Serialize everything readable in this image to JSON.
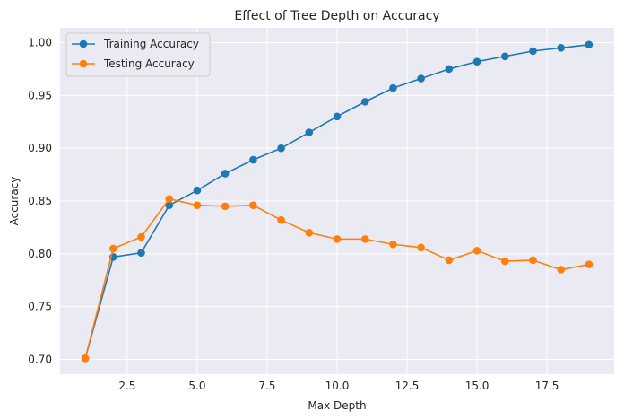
{
  "chart_data": {
    "type": "line",
    "title": "Effect of Tree Depth on Accuracy",
    "xlabel": "Max Depth",
    "ylabel": "Accuracy",
    "xlim": [
      0.1,
      19.9
    ],
    "ylim": [
      0.686,
      1.014
    ],
    "x_ticks": [
      2.5,
      5.0,
      7.5,
      10.0,
      12.5,
      15.0,
      17.5
    ],
    "x_tick_labels": [
      "2.5",
      "5.0",
      "7.5",
      "10.0",
      "12.5",
      "15.0",
      "17.5"
    ],
    "y_ticks": [
      0.7,
      0.75,
      0.8,
      0.85,
      0.9,
      0.95,
      1.0
    ],
    "y_tick_labels": [
      "0.70",
      "0.75",
      "0.80",
      "0.85",
      "0.90",
      "0.95",
      "1.00"
    ],
    "grid": true,
    "legend_position": "top-left",
    "x": [
      1,
      2,
      3,
      4,
      5,
      6,
      7,
      8,
      9,
      10,
      11,
      12,
      13,
      14,
      15,
      16,
      17,
      18,
      19
    ],
    "series": [
      {
        "name": "Training Accuracy",
        "color": "#1f77b4",
        "values": [
          0.701,
          0.797,
          0.801,
          0.846,
          0.86,
          0.876,
          0.889,
          0.9,
          0.915,
          0.93,
          0.944,
          0.957,
          0.966,
          0.975,
          0.982,
          0.987,
          0.992,
          0.995,
          0.998
        ]
      },
      {
        "name": "Testing Accuracy",
        "color": "#ff7f0e",
        "values": [
          0.701,
          0.805,
          0.816,
          0.852,
          0.846,
          0.845,
          0.846,
          0.832,
          0.82,
          0.814,
          0.814,
          0.809,
          0.806,
          0.794,
          0.803,
          0.793,
          0.794,
          0.785,
          0.79
        ]
      }
    ]
  }
}
